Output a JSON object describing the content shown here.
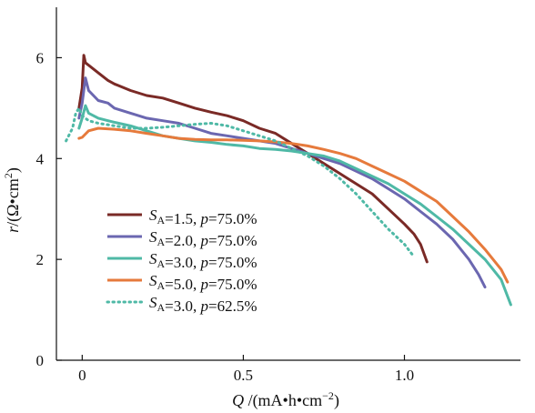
{
  "chart_data": {
    "type": "line",
    "xlabel": {
      "var": "Q",
      "unit": "/(mA•h•cm",
      "sup": "−2",
      "close": ")"
    },
    "ylabel": {
      "var": "r",
      "unit": "/(Ω•cm",
      "sup": "2",
      "close": ")"
    },
    "xlim": [
      -0.08,
      1.36
    ],
    "ylim": [
      0,
      7
    ],
    "xticks": [
      {
        "value": 0,
        "label": "0"
      },
      {
        "value": 0.5,
        "label": "0.5"
      },
      {
        "value": 1.0,
        "label": "1.0"
      }
    ],
    "yticks": [
      {
        "value": 0,
        "label": "0"
      },
      {
        "value": 2,
        "label": "2"
      },
      {
        "value": 4,
        "label": "4"
      },
      {
        "value": 6,
        "label": "6"
      }
    ],
    "grid": false,
    "legend_position": "lower-left",
    "series": [
      {
        "name": "S_A=1.5, p=75.0%",
        "legend": {
          "s": "S",
          "sub": "A",
          "sval": "=1.5, ",
          "p": "p",
          "pval": "=75.0%"
        },
        "color": "#7a2a26",
        "style": "solid",
        "points": [
          [
            -0.01,
            5.0
          ],
          [
            0.0,
            5.4
          ],
          [
            0.005,
            6.05
          ],
          [
            0.01,
            5.9
          ],
          [
            0.02,
            5.85
          ],
          [
            0.05,
            5.7
          ],
          [
            0.08,
            5.55
          ],
          [
            0.1,
            5.48
          ],
          [
            0.15,
            5.35
          ],
          [
            0.2,
            5.25
          ],
          [
            0.25,
            5.2
          ],
          [
            0.3,
            5.1
          ],
          [
            0.35,
            5.0
          ],
          [
            0.4,
            4.92
          ],
          [
            0.45,
            4.85
          ],
          [
            0.5,
            4.75
          ],
          [
            0.55,
            4.6
          ],
          [
            0.6,
            4.5
          ],
          [
            0.65,
            4.3
          ],
          [
            0.7,
            4.1
          ],
          [
            0.75,
            3.9
          ],
          [
            0.8,
            3.7
          ],
          [
            0.85,
            3.5
          ],
          [
            0.9,
            3.3
          ],
          [
            0.95,
            3.0
          ],
          [
            1.0,
            2.7
          ],
          [
            1.03,
            2.5
          ],
          [
            1.05,
            2.3
          ],
          [
            1.07,
            1.95
          ]
        ]
      },
      {
        "name": "S_A=2.0, p=75.0%",
        "legend": {
          "s": "S",
          "sub": "A",
          "sval": "=2.0, ",
          "p": "p",
          "pval": "=75.0%"
        },
        "color": "#6b67b0",
        "style": "solid",
        "points": [
          [
            -0.01,
            4.8
          ],
          [
            0.0,
            5.1
          ],
          [
            0.01,
            5.6
          ],
          [
            0.02,
            5.35
          ],
          [
            0.05,
            5.15
          ],
          [
            0.08,
            5.1
          ],
          [
            0.1,
            5.0
          ],
          [
            0.15,
            4.9
          ],
          [
            0.2,
            4.8
          ],
          [
            0.25,
            4.75
          ],
          [
            0.3,
            4.7
          ],
          [
            0.35,
            4.6
          ],
          [
            0.4,
            4.5
          ],
          [
            0.45,
            4.45
          ],
          [
            0.5,
            4.4
          ],
          [
            0.55,
            4.35
          ],
          [
            0.6,
            4.3
          ],
          [
            0.65,
            4.2
          ],
          [
            0.7,
            4.1
          ],
          [
            0.75,
            4.0
          ],
          [
            0.8,
            3.9
          ],
          [
            0.85,
            3.75
          ],
          [
            0.9,
            3.6
          ],
          [
            0.95,
            3.4
          ],
          [
            1.0,
            3.2
          ],
          [
            1.05,
            2.95
          ],
          [
            1.1,
            2.7
          ],
          [
            1.15,
            2.4
          ],
          [
            1.2,
            2.0
          ],
          [
            1.23,
            1.7
          ],
          [
            1.25,
            1.45
          ]
        ]
      },
      {
        "name": "S_A=3.0, p=75.0%",
        "legend": {
          "s": "S",
          "sub": "A",
          "sval": "=3.0, ",
          "p": "p",
          "pval": "=75.0%"
        },
        "color": "#4fb9a6",
        "style": "solid",
        "points": [
          [
            -0.01,
            4.6
          ],
          [
            0.0,
            4.8
          ],
          [
            0.01,
            5.05
          ],
          [
            0.02,
            4.9
          ],
          [
            0.05,
            4.8
          ],
          [
            0.08,
            4.75
          ],
          [
            0.1,
            4.72
          ],
          [
            0.15,
            4.65
          ],
          [
            0.2,
            4.55
          ],
          [
            0.25,
            4.45
          ],
          [
            0.3,
            4.4
          ],
          [
            0.35,
            4.35
          ],
          [
            0.4,
            4.32
          ],
          [
            0.45,
            4.28
          ],
          [
            0.5,
            4.25
          ],
          [
            0.55,
            4.2
          ],
          [
            0.6,
            4.18
          ],
          [
            0.65,
            4.15
          ],
          [
            0.7,
            4.1
          ],
          [
            0.75,
            4.05
          ],
          [
            0.8,
            3.95
          ],
          [
            0.85,
            3.8
          ],
          [
            0.9,
            3.65
          ],
          [
            0.95,
            3.5
          ],
          [
            1.0,
            3.3
          ],
          [
            1.05,
            3.1
          ],
          [
            1.1,
            2.85
          ],
          [
            1.15,
            2.6
          ],
          [
            1.2,
            2.3
          ],
          [
            1.25,
            2.0
          ],
          [
            1.3,
            1.6
          ],
          [
            1.33,
            1.1
          ]
        ]
      },
      {
        "name": "S_A=5.0, p=75.0%",
        "legend": {
          "s": "S",
          "sub": "A",
          "sval": "=5.0, ",
          "p": "p",
          "pval": "=75.0%"
        },
        "color": "#e67a3c",
        "style": "solid",
        "points": [
          [
            -0.01,
            4.4
          ],
          [
            0.0,
            4.42
          ],
          [
            0.02,
            4.55
          ],
          [
            0.05,
            4.6
          ],
          [
            0.1,
            4.58
          ],
          [
            0.15,
            4.55
          ],
          [
            0.2,
            4.5
          ],
          [
            0.25,
            4.45
          ],
          [
            0.3,
            4.4
          ],
          [
            0.35,
            4.38
          ],
          [
            0.4,
            4.37
          ],
          [
            0.45,
            4.37
          ],
          [
            0.5,
            4.36
          ],
          [
            0.55,
            4.35
          ],
          [
            0.6,
            4.33
          ],
          [
            0.65,
            4.3
          ],
          [
            0.7,
            4.25
          ],
          [
            0.75,
            4.18
          ],
          [
            0.8,
            4.1
          ],
          [
            0.85,
            4.0
          ],
          [
            0.9,
            3.85
          ],
          [
            0.95,
            3.7
          ],
          [
            1.0,
            3.55
          ],
          [
            1.05,
            3.35
          ],
          [
            1.1,
            3.15
          ],
          [
            1.15,
            2.85
          ],
          [
            1.2,
            2.55
          ],
          [
            1.25,
            2.2
          ],
          [
            1.3,
            1.8
          ],
          [
            1.32,
            1.55
          ]
        ]
      },
      {
        "name": "S_A=3.0, p=62.5%",
        "legend": {
          "s": "S",
          "sub": "A",
          "sval": "=3.0, ",
          "p": "p",
          "pval": "=62.5%"
        },
        "color": "#4fb9a6",
        "style": "dotted",
        "points": [
          [
            -0.05,
            4.35
          ],
          [
            -0.03,
            4.6
          ],
          [
            -0.02,
            4.9
          ],
          [
            -0.01,
            5.0
          ],
          [
            0.0,
            4.85
          ],
          [
            0.02,
            4.75
          ],
          [
            0.05,
            4.7
          ],
          [
            0.1,
            4.65
          ],
          [
            0.15,
            4.6
          ],
          [
            0.2,
            4.6
          ],
          [
            0.25,
            4.62
          ],
          [
            0.3,
            4.65
          ],
          [
            0.35,
            4.68
          ],
          [
            0.4,
            4.7
          ],
          [
            0.45,
            4.65
          ],
          [
            0.5,
            4.55
          ],
          [
            0.55,
            4.45
          ],
          [
            0.6,
            4.35
          ],
          [
            0.65,
            4.2
          ],
          [
            0.7,
            4.05
          ],
          [
            0.75,
            3.85
          ],
          [
            0.8,
            3.6
          ],
          [
            0.85,
            3.3
          ],
          [
            0.9,
            2.95
          ],
          [
            0.95,
            2.6
          ],
          [
            1.0,
            2.3
          ],
          [
            1.03,
            2.05
          ]
        ]
      }
    ]
  }
}
